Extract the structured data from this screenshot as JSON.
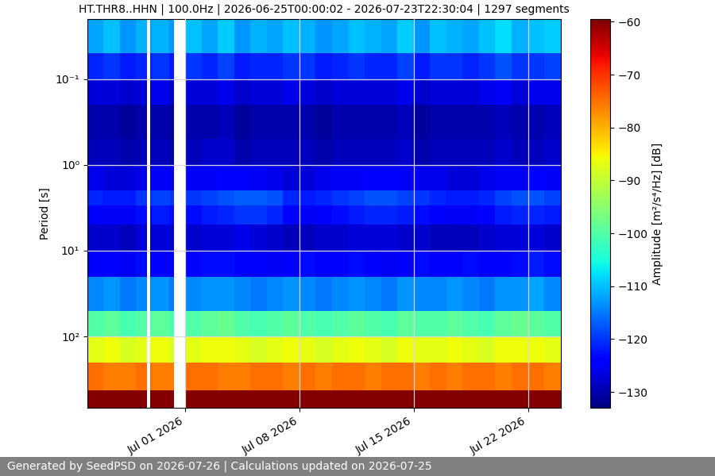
{
  "chart_data": {
    "type": "heatmap",
    "title": "HT.THR8..HHN | 100.0Hz | 2026-06-25T00:00:02 - 2026-07-23T22:30:04 | 1297 segments",
    "y_label": "Period [s]",
    "color_label": "Amplitude [m²/s⁴/Hz] [dB]",
    "footer": "Generated by SeedPSD on 2026-07-26 | Calculations updated on 2026-07-25",
    "color": "jet",
    "log": "y",
    "grid": true,
    "x": [
      "2026-06-25T00:00",
      "2026-06-26T00:00",
      "2026-06-27T00:00",
      "2026-06-28T00:00",
      "2026-06-28T15:30",
      "2026-06-28T21:00",
      "2026-06-29T00:00",
      "2026-06-30T00:00",
      "2026-06-30T07:00",
      "2026-07-01T00:00",
      "2026-07-02T00:00",
      "2026-07-03T00:00",
      "2026-07-04T00:00",
      "2026-07-05T00:00",
      "2026-07-06T00:00",
      "2026-07-07T00:00",
      "2026-07-08T00:00",
      "2026-07-09T00:00",
      "2026-07-10T00:00",
      "2026-07-11T00:00",
      "2026-07-12T00:00",
      "2026-07-13T00:00",
      "2026-07-14T00:00",
      "2026-07-15T00:00",
      "2026-07-16T00:00",
      "2026-07-17T00:00",
      "2026-07-18T00:00",
      "2026-07-19T00:00",
      "2026-07-20T00:00",
      "2026-07-21T00:00",
      "2026-07-22T00:00",
      "2026-07-23T00:00",
      "2026-07-24T00:00"
    ],
    "y": [
      0.02,
      0.05,
      0.1,
      0.2,
      0.5,
      1,
      2,
      3,
      5,
      10,
      20,
      50,
      100,
      200,
      420,
      680
    ],
    "cells": [
      [
        -112,
        -110,
        -113,
        -111,
        null,
        -112,
        -111,
        -113,
        null,
        -110,
        -112,
        -109,
        -113,
        -111,
        -112,
        -110,
        -111,
        -113,
        -112,
        -110,
        -111,
        -112,
        -109,
        -113,
        -110,
        -111,
        -112,
        -110,
        -108,
        -111,
        -110,
        -109
      ],
      [
        -121,
        -120,
        -122,
        -121,
        null,
        -121,
        -120,
        -122,
        null,
        -120,
        -121,
        -119,
        -122,
        -121,
        -121,
        -120,
        -120,
        -122,
        -121,
        -120,
        -121,
        -121,
        -119,
        -122,
        -120,
        -120,
        -121,
        -120,
        -118,
        -120,
        -120,
        -119
      ],
      [
        -127,
        -127,
        -128,
        -127,
        null,
        -127,
        -126,
        -128,
        null,
        -127,
        -127,
        -126,
        -128,
        -127,
        -127,
        -126,
        -127,
        -128,
        -127,
        -127,
        -127,
        -127,
        -126,
        -128,
        -127,
        -127,
        -127,
        -126,
        -125,
        -127,
        -126,
        -126
      ],
      [
        -130,
        -130,
        -131,
        -130,
        null,
        -130,
        -130,
        -131,
        null,
        -130,
        -130,
        -129,
        -131,
        -130,
        -130,
        -130,
        -130,
        -131,
        -130,
        -130,
        -130,
        -130,
        -129,
        -131,
        -130,
        -130,
        -130,
        -130,
        -129,
        -130,
        -130,
        -129
      ],
      [
        -129,
        -129,
        -130,
        -129,
        null,
        -129,
        -129,
        -130,
        null,
        -129,
        -128,
        -128,
        -130,
        -129,
        -129,
        -129,
        -129,
        -130,
        -129,
        -129,
        -129,
        -129,
        -128,
        -130,
        -129,
        -129,
        -129,
        -129,
        -128,
        -129,
        -129,
        -128
      ],
      [
        -126,
        -127,
        -127,
        -126,
        null,
        -126,
        -125,
        -126,
        null,
        -125,
        -125,
        -124,
        -124,
        -125,
        -126,
        -127,
        -127,
        -126,
        -125,
        -125,
        -124,
        -124,
        -125,
        -126,
        -126,
        -127,
        -127,
        -126,
        -125,
        -125,
        -124,
        -125
      ],
      [
        -121,
        -122,
        -122,
        -120,
        null,
        -120,
        -119,
        -120,
        null,
        -120,
        -119,
        -118,
        -117,
        -117,
        -118,
        -121,
        -122,
        -121,
        -120,
        -119,
        -118,
        -118,
        -119,
        -120,
        -121,
        -122,
        -122,
        -121,
        -119,
        -118,
        -118,
        -119
      ],
      [
        -124,
        -125,
        -125,
        -123,
        null,
        -123,
        -122,
        -123,
        null,
        -123,
        -122,
        -121,
        -120,
        -120,
        -121,
        -124,
        -125,
        -124,
        -123,
        -122,
        -121,
        -121,
        -122,
        -123,
        -124,
        -125,
        -125,
        -124,
        -122,
        -121,
        -121,
        -122
      ],
      [
        -128,
        -128,
        -129,
        -127,
        null,
        -128,
        -127,
        -128,
        null,
        -128,
        -127,
        -127,
        -126,
        -127,
        -128,
        -129,
        -129,
        -128,
        -128,
        -127,
        -127,
        -127,
        -128,
        -128,
        -129,
        -129,
        -129,
        -128,
        -127,
        -127,
        -127,
        -128
      ],
      [
        -124,
        -124,
        -125,
        -123,
        null,
        -124,
        -124,
        -125,
        null,
        -124,
        -123,
        -123,
        -124,
        -124,
        -125,
        -124,
        -123,
        -124,
        -124,
        -123,
        -124,
        -125,
        -124,
        -123,
        -124,
        -124,
        -123,
        -124,
        -124,
        -123,
        -122,
        -123
      ],
      [
        -114,
        -113,
        -115,
        -114,
        null,
        -114,
        -113,
        -115,
        null,
        -114,
        -113,
        -113,
        -114,
        -115,
        -114,
        -113,
        -114,
        -115,
        -114,
        -113,
        -114,
        -115,
        -113,
        -114,
        -114,
        -113,
        -114,
        -115,
        -113,
        -113,
        -112,
        -114
      ],
      [
        -100,
        -99,
        -101,
        -100,
        null,
        -100,
        -99,
        -101,
        null,
        -100,
        -99,
        -98,
        -100,
        -101,
        -100,
        -99,
        -100,
        -101,
        -100,
        -99,
        -100,
        -101,
        -99,
        -100,
        -100,
        -99,
        -100,
        -101,
        -99,
        -98,
        -99,
        -100
      ],
      [
        -87,
        -86,
        -88,
        -87,
        null,
        -87,
        -86,
        -88,
        null,
        -87,
        -86,
        -86,
        -87,
        -88,
        -87,
        -86,
        -87,
        -88,
        -87,
        -86,
        -87,
        -88,
        -86,
        -87,
        -87,
        -86,
        -87,
        -88,
        -86,
        -86,
        -86,
        -87
      ],
      [
        -75,
        -76,
        -76,
        -75,
        null,
        -75,
        -76,
        -76,
        null,
        -75,
        -75,
        -76,
        -76,
        -75,
        -75,
        -76,
        -75,
        -76,
        -75,
        -75,
        -76,
        -75,
        -75,
        -76,
        -75,
        -76,
        -75,
        -75,
        -76,
        -75,
        -75,
        -76
      ],
      [
        -60,
        -60,
        -60,
        -60,
        null,
        -60,
        -60,
        -60,
        null,
        -60,
        -60,
        -60,
        -60,
        -60,
        -60,
        -60,
        -60,
        -60,
        -60,
        -60,
        -60,
        -60,
        -60,
        -60,
        -60,
        -60,
        -60,
        -60,
        -60,
        -60,
        -60,
        -60
      ]
    ],
    "xlim": [
      "2026-06-25T00:00",
      "2026-07-24T00:00"
    ],
    "xticks": [
      {
        "value": "2026-07-01T00:00",
        "label": "Jul 01 2026"
      },
      {
        "value": "2026-07-08T00:00",
        "label": "Jul 08 2026"
      },
      {
        "value": "2026-07-15T00:00",
        "label": "Jul 15 2026"
      },
      {
        "value": "2026-07-22T00:00",
        "label": "Jul 22 2026"
      }
    ],
    "ylim": [
      0.02,
      680
    ],
    "yticks": [
      {
        "value": 0.1,
        "label": "10⁻¹"
      },
      {
        "value": 1,
        "label": "10⁰"
      },
      {
        "value": 10,
        "label": "10¹"
      },
      {
        "value": 100,
        "label": "10²"
      }
    ],
    "colorbar_lim": [
      -133,
      -59.5
    ],
    "colorbar_ticks": [
      {
        "value": -130,
        "label": "−130"
      },
      {
        "value": -120,
        "label": "−120"
      },
      {
        "value": -110,
        "label": "−110"
      },
      {
        "value": -100,
        "label": "−100"
      },
      {
        "value": -90,
        "label": "−90"
      },
      {
        "value": -80,
        "label": "−80"
      },
      {
        "value": -70,
        "label": "−70"
      },
      {
        "value": -60,
        "label": "−60"
      }
    ]
  }
}
